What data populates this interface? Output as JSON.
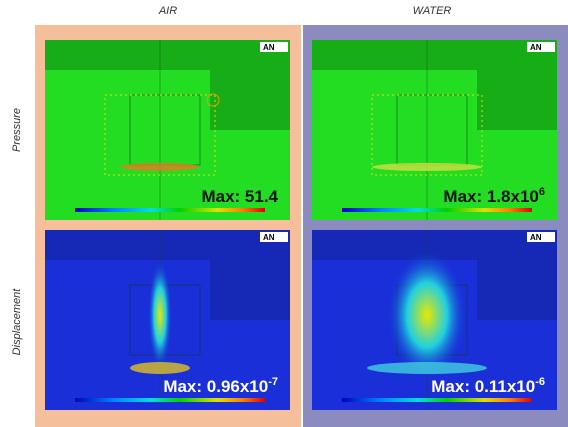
{
  "columns": [
    "AIR",
    "WATER"
  ],
  "rows": [
    "Pressure",
    "Displacement"
  ],
  "panels": [
    {
      "max": {
        "text": "Max: 51.4"
      },
      "logo": "AN"
    },
    {
      "max": {
        "text": "Max: 1.8x10",
        "sup": "6"
      },
      "logo": "AN"
    },
    {
      "max": {
        "text": "Max: 0.96x10",
        "sup": "-7"
      },
      "logo": "AN"
    },
    {
      "max": {
        "text": "Max: 0.11x10",
        "sup": "-6"
      },
      "logo": "AN"
    }
  ]
}
